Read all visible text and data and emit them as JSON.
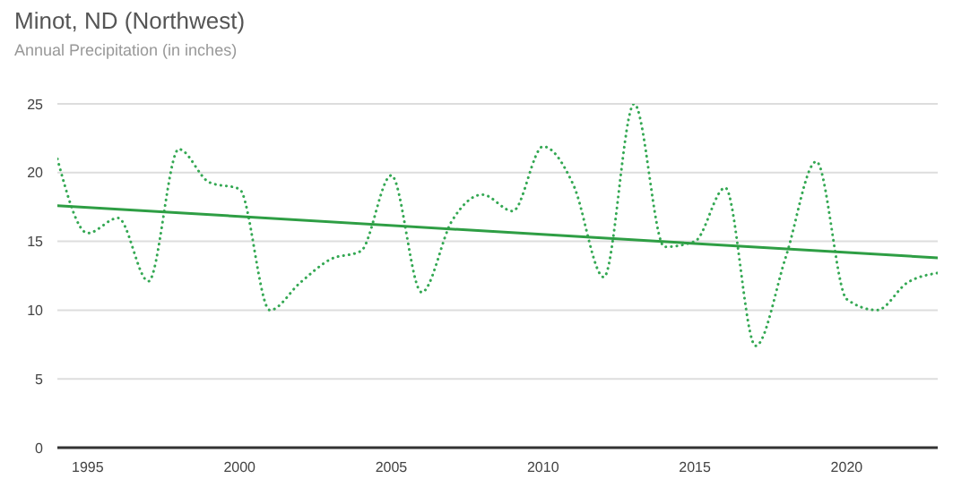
{
  "chart_data": {
    "type": "line",
    "title": "Minot, ND (Northwest)",
    "subtitle": "Annual Precipitation (in inches)",
    "x": [
      1994,
      1995,
      1996,
      1997,
      1998,
      1999,
      2000,
      2001,
      2002,
      2003,
      2004,
      2005,
      2006,
      2007,
      2008,
      2009,
      2010,
      2011,
      2012,
      2013,
      2014,
      2015,
      2016,
      2017,
      2018,
      2019,
      2020,
      2021,
      2022,
      2023
    ],
    "series": [
      {
        "type": "line",
        "color": "#34a853",
        "line_style": "dotted",
        "values": [
          21.0,
          15.6,
          16.7,
          12.1,
          21.7,
          19.3,
          18.8,
          10.0,
          12.0,
          13.7,
          14.3,
          19.8,
          11.3,
          16.5,
          18.4,
          17.2,
          21.9,
          19.1,
          12.4,
          25.0,
          14.6,
          15.0,
          18.9,
          7.4,
          13.9,
          20.8,
          10.8,
          10.0,
          12.0,
          12.7
        ]
      },
      {
        "type": "line",
        "color": "#2e9e44",
        "line_style": "solid",
        "x": [
          1994,
          2023
        ],
        "values": [
          17.6,
          13.8
        ]
      }
    ],
    "xlim": [
      1994,
      2023
    ],
    "xticks": [
      1995,
      2000,
      2005,
      2010,
      2015,
      2020
    ],
    "ylim": [
      0,
      25
    ],
    "yticks": [
      0,
      5,
      10,
      15,
      20,
      25
    ],
    "grid": "y",
    "legend": false,
    "marker": "none"
  }
}
